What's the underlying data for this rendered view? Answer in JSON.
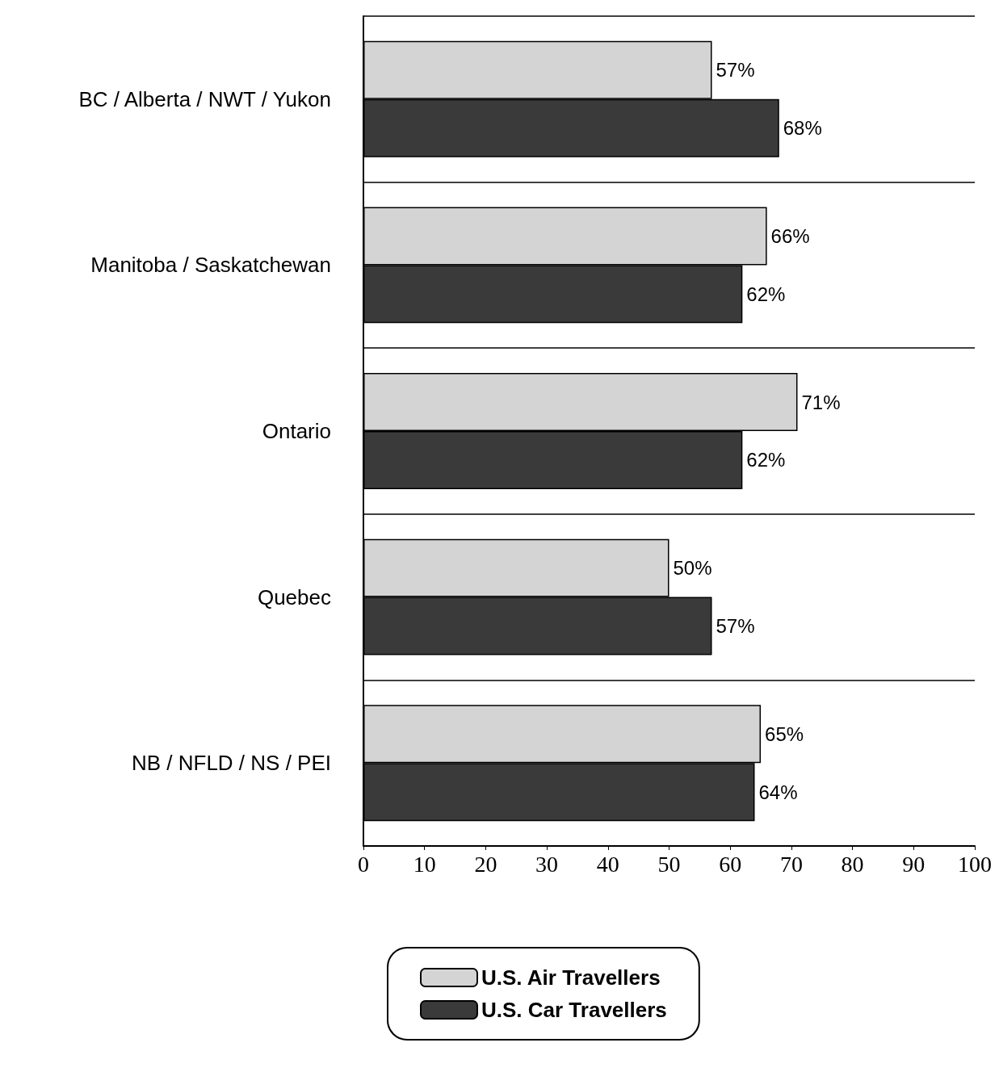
{
  "chart_data": {
    "type": "bar",
    "orientation": "horizontal",
    "categories": [
      "BC / Alberta / NWT / Yukon",
      "Manitoba / Saskatchewan",
      "Ontario",
      "Quebec",
      "NB / NFLD / NS / PEI"
    ],
    "series": [
      {
        "name": "U.S. Air Travellers",
        "color": "#d4d4d4",
        "values": [
          57,
          66,
          71,
          50,
          65
        ],
        "value_labels": [
          "57%",
          "66%",
          "71%",
          "50%",
          "65%"
        ]
      },
      {
        "name": "U.S. Car Travellers",
        "color": "#3a3a3a",
        "values": [
          68,
          62,
          62,
          57,
          64
        ],
        "value_labels": [
          "68%",
          "62%",
          "62%",
          "57%",
          "64%"
        ]
      }
    ],
    "xlim": [
      0,
      100
    ],
    "xticks": [
      0,
      10,
      20,
      30,
      40,
      50,
      60,
      70,
      80,
      90,
      100
    ],
    "grid": "y",
    "legend": "bottom"
  }
}
